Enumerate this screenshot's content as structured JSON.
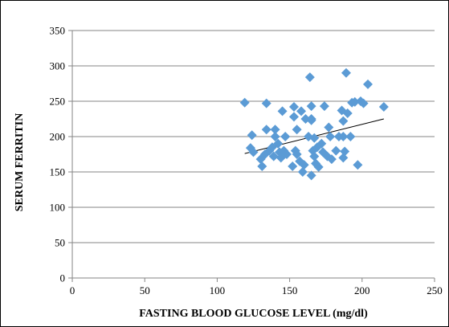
{
  "chart_data": {
    "type": "scatter",
    "title": "",
    "xlabel": "FASTING BLOOD GLUCOSE LEVEL (mg/dl)",
    "ylabel": "SERUM FERRITIN",
    "xlim": [
      0,
      250
    ],
    "ylim": [
      0,
      350
    ],
    "xticks": [
      0,
      50,
      100,
      150,
      200,
      250
    ],
    "yticks": [
      0,
      50,
      100,
      150,
      200,
      250,
      300,
      350
    ],
    "grid": "horizontal",
    "marker": "diamond",
    "marker_color": "#5B9BD5",
    "trendline": {
      "type": "linear",
      "x": [
        119,
        215
      ],
      "y": [
        176,
        225
      ],
      "color": "#000000"
    },
    "series": [
      {
        "points": [
          [
            119,
            248
          ],
          [
            123,
            184
          ],
          [
            124,
            202
          ],
          [
            125,
            178
          ],
          [
            130,
            168
          ],
          [
            131,
            158
          ],
          [
            133,
            175
          ],
          [
            134,
            210
          ],
          [
            134,
            247
          ],
          [
            136,
            180
          ],
          [
            138,
            185
          ],
          [
            139,
            172
          ],
          [
            140,
            210
          ],
          [
            140,
            200
          ],
          [
            142,
            190
          ],
          [
            143,
            178
          ],
          [
            144,
            170
          ],
          [
            145,
            236
          ],
          [
            146,
            180
          ],
          [
            147,
            200
          ],
          [
            148,
            175
          ],
          [
            152,
            158
          ],
          [
            153,
            242
          ],
          [
            153,
            228
          ],
          [
            154,
            180
          ],
          [
            155,
            210
          ],
          [
            155,
            175
          ],
          [
            157,
            165
          ],
          [
            158,
            236
          ],
          [
            159,
            150
          ],
          [
            160,
            160
          ],
          [
            161,
            225
          ],
          [
            163,
            200
          ],
          [
            164,
            284
          ],
          [
            165,
            243
          ],
          [
            165,
            145
          ],
          [
            165,
            225
          ],
          [
            165,
            223
          ],
          [
            166,
            180
          ],
          [
            167,
            198
          ],
          [
            167,
            172
          ],
          [
            168,
            162
          ],
          [
            169,
            185
          ],
          [
            170,
            157
          ],
          [
            172,
            190
          ],
          [
            173,
            178
          ],
          [
            174,
            243
          ],
          [
            176,
            172
          ],
          [
            177,
            213
          ],
          [
            178,
            200
          ],
          [
            179,
            168
          ],
          [
            182,
            180
          ],
          [
            184,
            200
          ],
          [
            186,
            237
          ],
          [
            187,
            222
          ],
          [
            187,
            200
          ],
          [
            187,
            170
          ],
          [
            188,
            179
          ],
          [
            189,
            290
          ],
          [
            190,
            233
          ],
          [
            192,
            200
          ],
          [
            193,
            248
          ],
          [
            195,
            249
          ],
          [
            197,
            160
          ],
          [
            199,
            250
          ],
          [
            201,
            247
          ],
          [
            204,
            274
          ],
          [
            215,
            242
          ]
        ]
      }
    ]
  }
}
